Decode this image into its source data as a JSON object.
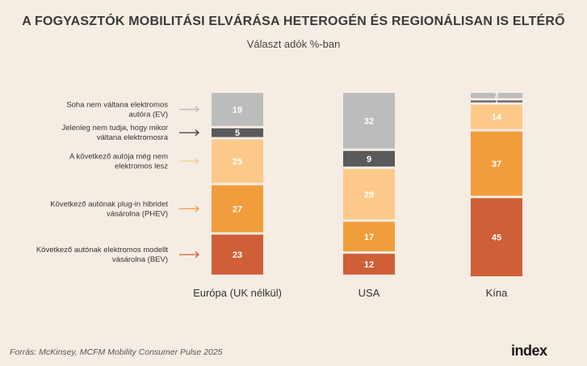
{
  "chart_data": {
    "type": "bar",
    "stacked": true,
    "title": "A FOGYASZTÓK MOBILITÁSI ELVÁRÁSA HETEROGÉN ÉS REGIONÁLISAN IS ELTÉRŐ",
    "subtitle": "Választ adók %-ban",
    "categories": [
      "Európa (UK nélkül)",
      "USA",
      "Kína"
    ],
    "series": [
      {
        "name": "Soha nem váltana elektromos autóra (EV)",
        "color": "#bcbcbc",
        "label_color": "#ffffff",
        "values": [
          19,
          32,
          3
        ]
      },
      {
        "name": "Jelenleg nem tudja, hogy mikor váltana elektromosra",
        "color": "#5a5a5a",
        "label_color": "#ffffff",
        "values": [
          5,
          9,
          1
        ]
      },
      {
        "name": "A következő autója még nem elektromos lesz",
        "color": "#fcc98a",
        "label_color": "#ffffff",
        "values": [
          25,
          29,
          14
        ]
      },
      {
        "name": "Következő autónak plug-in hibridet vásárolna (PHEV)",
        "color": "#f29d3b",
        "label_color": "#ffffff",
        "values": [
          27,
          17,
          37
        ]
      },
      {
        "name": "Következő autónak elektromos modellt vásárolna (BEV)",
        "color": "#cf5f37",
        "label_color": "#ffffff",
        "values": [
          23,
          12,
          45
        ]
      }
    ],
    "legend_lines": [
      [
        "Soha nem váltana elektromos",
        "autóra (EV)"
      ],
      [
        "Jelenleg nem tudja, hogy mikor",
        "váltana elektromosra"
      ],
      [
        "A következő autója még nem",
        "elektromos lesz"
      ],
      [
        "Következő autónak plug-in hibridet",
        "vásárolna (PHEV)"
      ],
      [
        "Következő autónak elektromos modellt",
        "vásárolna (BEV)"
      ]
    ],
    "legend_arrow_colors": [
      "#bcbcbc",
      "#3a3a3a",
      "#fcc98a",
      "#f29d3b",
      "#cf5f37"
    ],
    "ylim": [
      0,
      100
    ],
    "legend": "left"
  },
  "source": "Forrás: McKinsey, MCFM Mobility Consumer Pulse 2025",
  "logo": "index"
}
